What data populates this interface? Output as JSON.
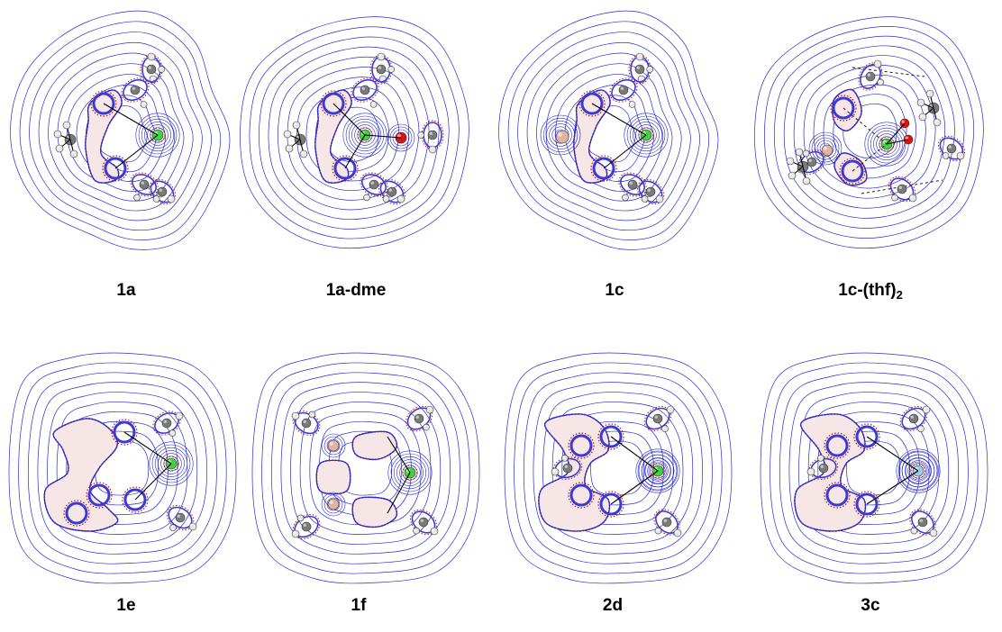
{
  "panels": [
    {
      "id": "1a",
      "label": "1a",
      "center_atom": "green"
    },
    {
      "id": "1a-dme",
      "label": "1a-dme",
      "center_atom": "green"
    },
    {
      "id": "1c",
      "label": "1c",
      "center_atom": "green"
    },
    {
      "id": "1c-thf2",
      "label": "1c-(thf)",
      "label_sub": "2",
      "center_atom": "green"
    },
    {
      "id": "1e",
      "label": "1e",
      "center_atom": "green"
    },
    {
      "id": "1f",
      "label": "1f",
      "center_atom": "green"
    },
    {
      "id": "2d",
      "label": "2d",
      "center_atom": "green"
    },
    {
      "id": "3c",
      "label": "3c",
      "center_atom": "lightblue"
    }
  ],
  "colors": {
    "contour": "#2a2ad0",
    "density_dots": "#b01515",
    "carbon": "#7a7a7a",
    "hydrogen": "#e8e8e8",
    "metal_green": "#3fd43f",
    "metal_lightblue": "#9ec8ee",
    "oxygen": "#e01010",
    "boron": "#e0b4a4",
    "nitrogen_ring": "#3a3ad8"
  }
}
